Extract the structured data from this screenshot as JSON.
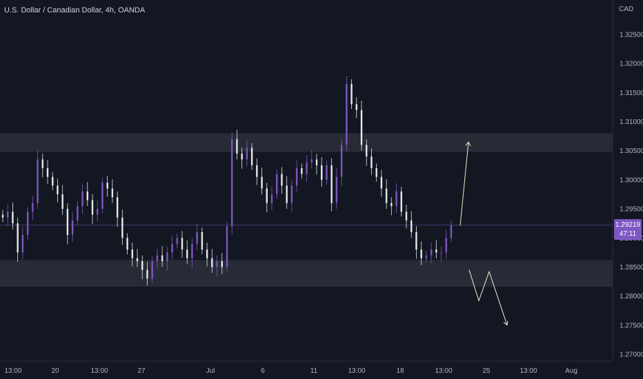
{
  "header": {
    "title": "U.S. Dollar / Canadian Dollar, 4h, OANDA"
  },
  "axis": {
    "currency": "CAD"
  },
  "last_price": {
    "value": "1.29219",
    "countdown": "47:11",
    "badge_color": "#7e57c2"
  },
  "colors": {
    "background": "#131722",
    "bull": "#7e57c2",
    "bear": "#e8e8ec",
    "zone": "#2a2e39",
    "grid_text": "#b2b5be",
    "projection": "#f0ecc8"
  },
  "chart_data": {
    "type": "candlestick",
    "symbol": "USDCAD",
    "timeframe": "4h",
    "source": "OANDA",
    "y_ticks": [
      "1.32500",
      "1.32000",
      "1.31500",
      "1.31000",
      "1.30500",
      "1.30000",
      "1.29500",
      "1.29000",
      "1.28500",
      "1.28000",
      "1.27500",
      "1.27000"
    ],
    "x_ticks": [
      "13:00",
      "20",
      "13:00",
      "27",
      "Jul",
      "6",
      "11",
      "13:00",
      "18",
      "13:00",
      "25",
      "13:00",
      "Aug"
    ],
    "ylim": [
      1.2695,
      1.332
    ],
    "zones": [
      {
        "name": "resistance",
        "from": 1.3048,
        "to": 1.308
      },
      {
        "name": "support",
        "from": 1.2816,
        "to": 1.2862
      }
    ],
    "closes": [
      1.2935,
      1.2945,
      1.2925,
      1.2875,
      1.2905,
      1.2945,
      1.296,
      1.3035,
      1.302,
      1.3005,
      1.299,
      1.2975,
      1.295,
      1.2905,
      1.293,
      1.2955,
      1.298,
      1.2965,
      1.294,
      1.295,
      1.2995,
      1.2985,
      1.297,
      1.2935,
      1.29,
      1.288,
      1.2865,
      1.286,
      1.2845,
      1.283,
      1.286,
      1.287,
      1.286,
      1.2875,
      1.289,
      1.29,
      1.288,
      1.2865,
      1.289,
      1.291,
      1.288,
      1.2865,
      1.285,
      1.286,
      1.285,
      1.292,
      1.307,
      1.3045,
      1.3035,
      1.3055,
      1.3025,
      1.3005,
      1.2985,
      1.296,
      1.2975,
      1.301,
      1.299,
      1.296,
      1.299,
      1.302,
      1.301,
      1.303,
      1.3035,
      1.3025,
      1.3,
      1.3025,
      1.296,
      1.3005,
      1.306,
      1.3165,
      1.313,
      1.312,
      1.306,
      1.304,
      1.302,
      1.3005,
      1.2985,
      1.296,
      1.2955,
      1.298,
      1.2945,
      1.293,
      1.291,
      1.288,
      1.2865,
      1.287,
      1.288,
      1.2875,
      1.2875,
      1.29,
      1.2922
    ],
    "projection": {
      "up": [
        [
          1.2921,
          1.3065
        ]
      ],
      "down": [
        [
          1.2845,
          1.2792,
          1.2842,
          1.275
        ]
      ]
    }
  }
}
